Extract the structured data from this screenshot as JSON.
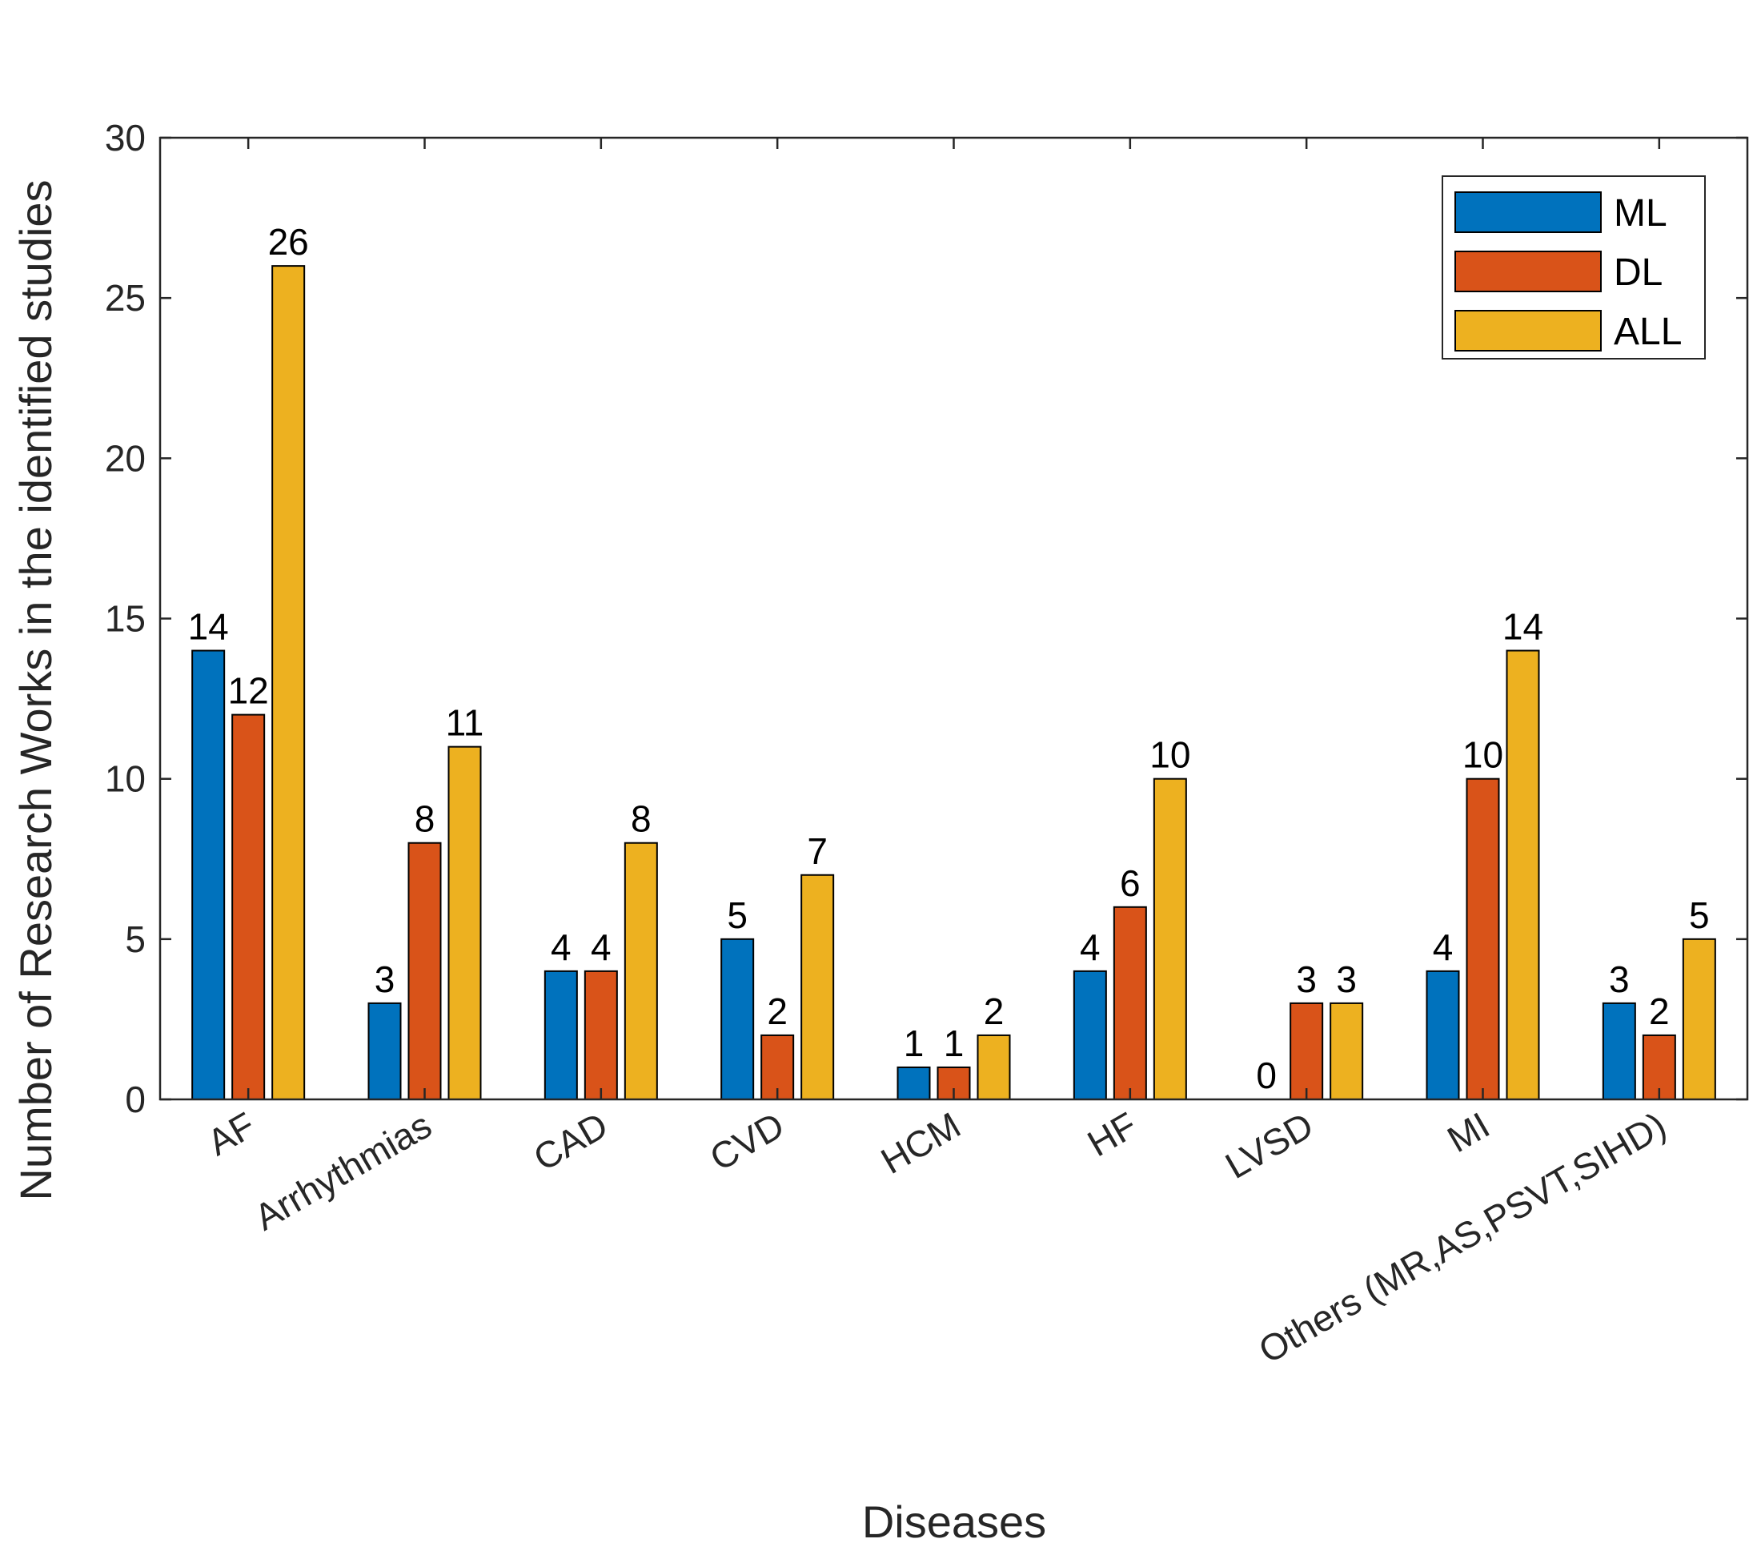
{
  "chart_data": {
    "type": "bar",
    "xlabel": "Diseases",
    "ylabel": "Number of Research Works in the identified studies",
    "ylim": [
      0,
      30
    ],
    "yticks": [
      0,
      5,
      10,
      15,
      20,
      25,
      30
    ],
    "categories": [
      "AF",
      "Arrhythmias",
      "CAD",
      "CVD",
      "HCM",
      "HF",
      "LVSD",
      "MI",
      "Others (MR,AS,PSVT,SIHD)"
    ],
    "series": [
      {
        "name": "ML",
        "color": "#0072BD",
        "values": [
          14,
          3,
          4,
          5,
          1,
          4,
          0,
          4,
          3
        ]
      },
      {
        "name": "DL",
        "color": "#D95319",
        "values": [
          12,
          8,
          4,
          2,
          1,
          6,
          3,
          10,
          2
        ]
      },
      {
        "name": "ALL",
        "color": "#EDB120",
        "values": [
          26,
          11,
          8,
          7,
          2,
          10,
          3,
          14,
          5
        ]
      }
    ],
    "legend_position": "top-right",
    "grid": false,
    "data_labels": true
  }
}
